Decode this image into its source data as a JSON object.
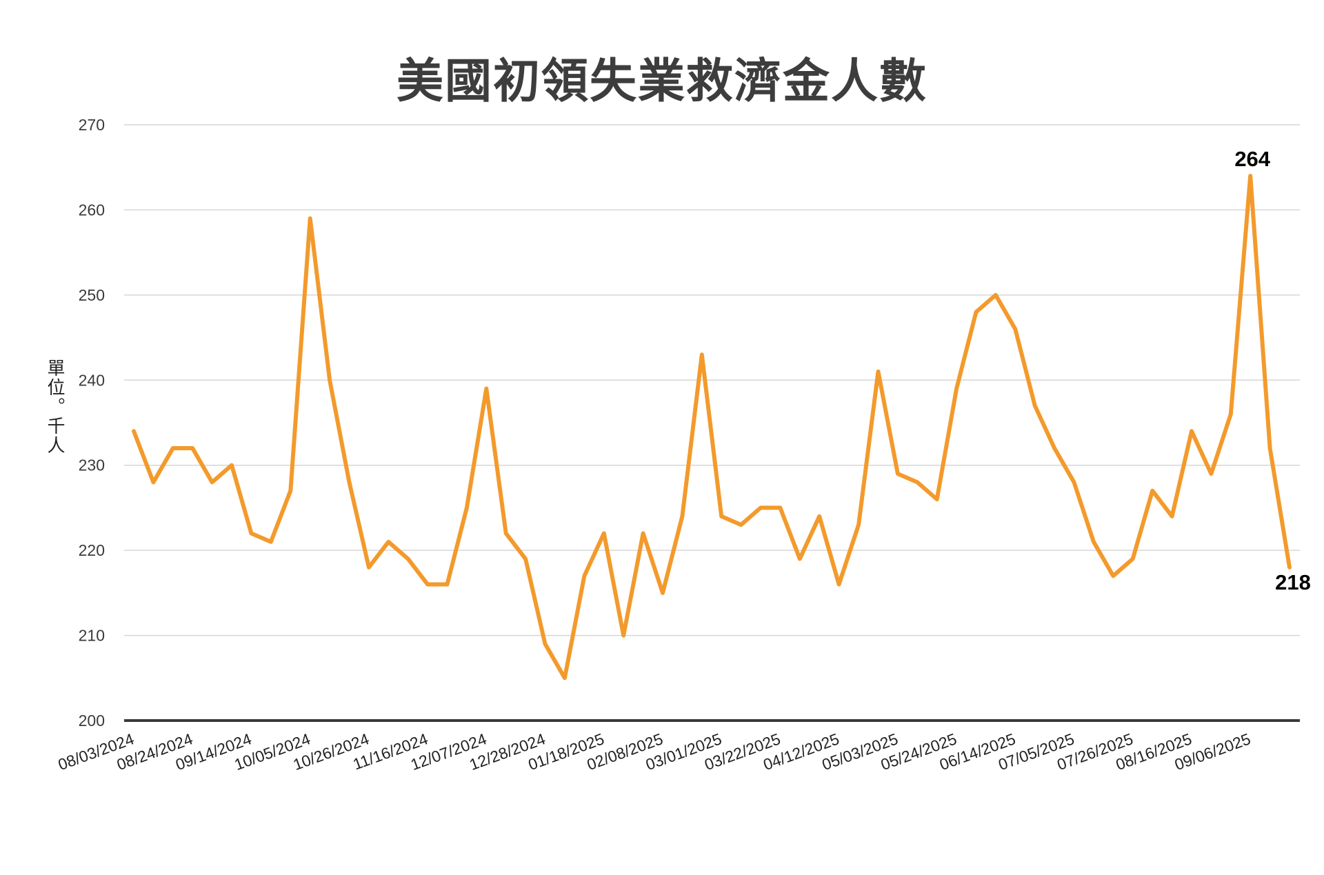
{
  "chart_data": {
    "type": "line",
    "title": "美國初領失業救濟金人數",
    "ylabel": "單位。千人",
    "xlabel": "",
    "ylim": [
      200,
      270
    ],
    "yticks": [
      200,
      210,
      220,
      230,
      240,
      250,
      260,
      270
    ],
    "grid": true,
    "legend": "none",
    "line_color": "#F39A2C",
    "x_tick_labels": [
      "08/03/2024",
      "08/24/2024",
      "09/14/2024",
      "10/05/2024",
      "10/26/2024",
      "11/16/2024",
      "12/07/2024",
      "12/28/2024",
      "01/18/2025",
      "02/08/2025",
      "03/01/2025",
      "03/22/2025",
      "04/12/2025",
      "05/03/2025",
      "05/24/2025",
      "06/14/2025",
      "07/05/2025",
      "07/26/2025",
      "08/16/2025",
      "09/06/2025"
    ],
    "x": [
      "08/03/2024",
      "08/10/2024",
      "08/17/2024",
      "08/24/2024",
      "08/31/2024",
      "09/07/2024",
      "09/14/2024",
      "09/21/2024",
      "09/28/2024",
      "10/05/2024",
      "10/12/2024",
      "10/19/2024",
      "10/26/2024",
      "11/02/2024",
      "11/09/2024",
      "11/16/2024",
      "11/23/2024",
      "11/30/2024",
      "12/07/2024",
      "12/14/2024",
      "12/21/2024",
      "12/28/2024",
      "01/04/2025",
      "01/11/2025",
      "01/18/2025",
      "01/25/2025",
      "02/01/2025",
      "02/08/2025",
      "02/15/2025",
      "02/22/2025",
      "03/01/2025",
      "03/08/2025",
      "03/15/2025",
      "03/22/2025",
      "03/29/2025",
      "04/05/2025",
      "04/12/2025",
      "04/19/2025",
      "04/26/2025",
      "05/03/2025",
      "05/10/2025",
      "05/17/2025",
      "05/24/2025",
      "05/31/2025",
      "06/07/2025",
      "06/14/2025",
      "06/21/2025",
      "06/28/2025",
      "07/05/2025",
      "07/12/2025",
      "07/19/2025",
      "07/26/2025",
      "08/02/2025",
      "08/09/2025",
      "08/16/2025",
      "08/23/2025",
      "08/30/2025",
      "09/06/2025",
      "09/13/2025",
      "09/20/2025"
    ],
    "series": [
      {
        "values": [
          234,
          228,
          232,
          232,
          228,
          230,
          222,
          221,
          227,
          259,
          240,
          228,
          218,
          221,
          219,
          216,
          216,
          225,
          239,
          222,
          219,
          209,
          205,
          217,
          222,
          210,
          222,
          215,
          224,
          243,
          224,
          223,
          225,
          225,
          219,
          224,
          216,
          223,
          241,
          229,
          228,
          226,
          239,
          248,
          250,
          246,
          237,
          232,
          228,
          221,
          217,
          219,
          227,
          224,
          234,
          229,
          236,
          264,
          232,
          218
        ]
      }
    ],
    "annotations": [
      {
        "index": 57,
        "text": "264"
      },
      {
        "index": 59,
        "text": "218"
      }
    ]
  }
}
